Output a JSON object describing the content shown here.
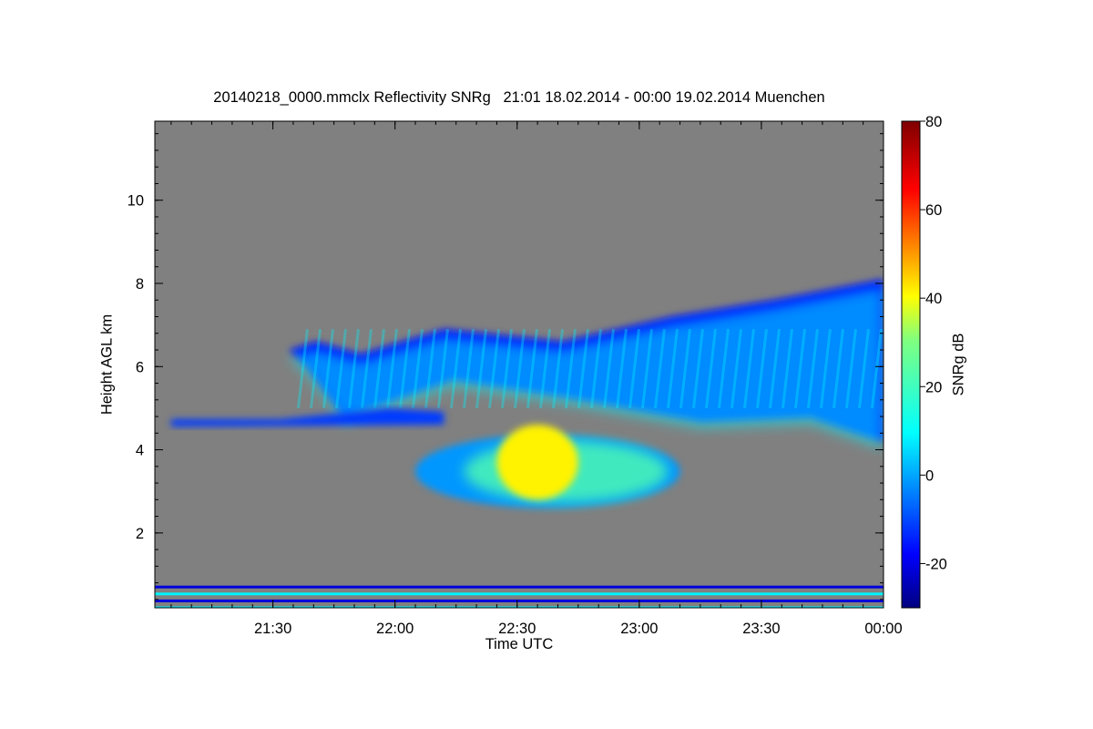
{
  "chart_data": {
    "type": "heatmap",
    "title": "20140218_0000.mmclx Reflectivity SNRg   21:01 18.02.2014 - 00:00 19.02.2014 Muenchen",
    "xlabel": "Time UTC",
    "ylabel": "Height AGL km",
    "x_range_minutes_utc": [
      "21:01",
      "00:00"
    ],
    "xticks": [
      "21:30",
      "22:00",
      "22:30",
      "23:00",
      "23:30",
      "00:00"
    ],
    "ylim": [
      0.2,
      11.9
    ],
    "yticks": [
      2,
      4,
      6,
      8,
      10
    ],
    "background_color": "#808080",
    "colorbar": {
      "label": "SNRg dB",
      "range": [
        -30,
        80
      ],
      "ticks": [
        -20,
        0,
        20,
        40,
        60,
        80
      ],
      "colormap": "jet"
    },
    "features": [
      {
        "name": "upper cloud layer",
        "time_from": "21:34",
        "time_to": "00:00",
        "height_km": [
          4.4,
          8.1
        ],
        "snr_db": [
          -15,
          10
        ]
      },
      {
        "name": "thin cloud layer",
        "time_from": "21:05",
        "time_to": "22:12",
        "height_km": [
          4.6,
          5.0
        ],
        "snr_db": [
          -10,
          0
        ]
      },
      {
        "name": "lower precipitation band",
        "time_from": "22:05",
        "time_to": "23:10",
        "height_km": [
          2.6,
          4.8
        ],
        "snr_db": [
          0,
          40
        ]
      },
      {
        "name": "intense core",
        "time_from": "22:25",
        "time_to": "22:45",
        "height_km": [
          2.8,
          4.6
        ],
        "snr_db": [
          30,
          40
        ]
      },
      {
        "name": "ground clutter",
        "time_from": "21:01",
        "time_to": "00:00",
        "height_km": [
          0.2,
          0.7
        ],
        "snr_db": [
          -20,
          10
        ]
      }
    ]
  }
}
